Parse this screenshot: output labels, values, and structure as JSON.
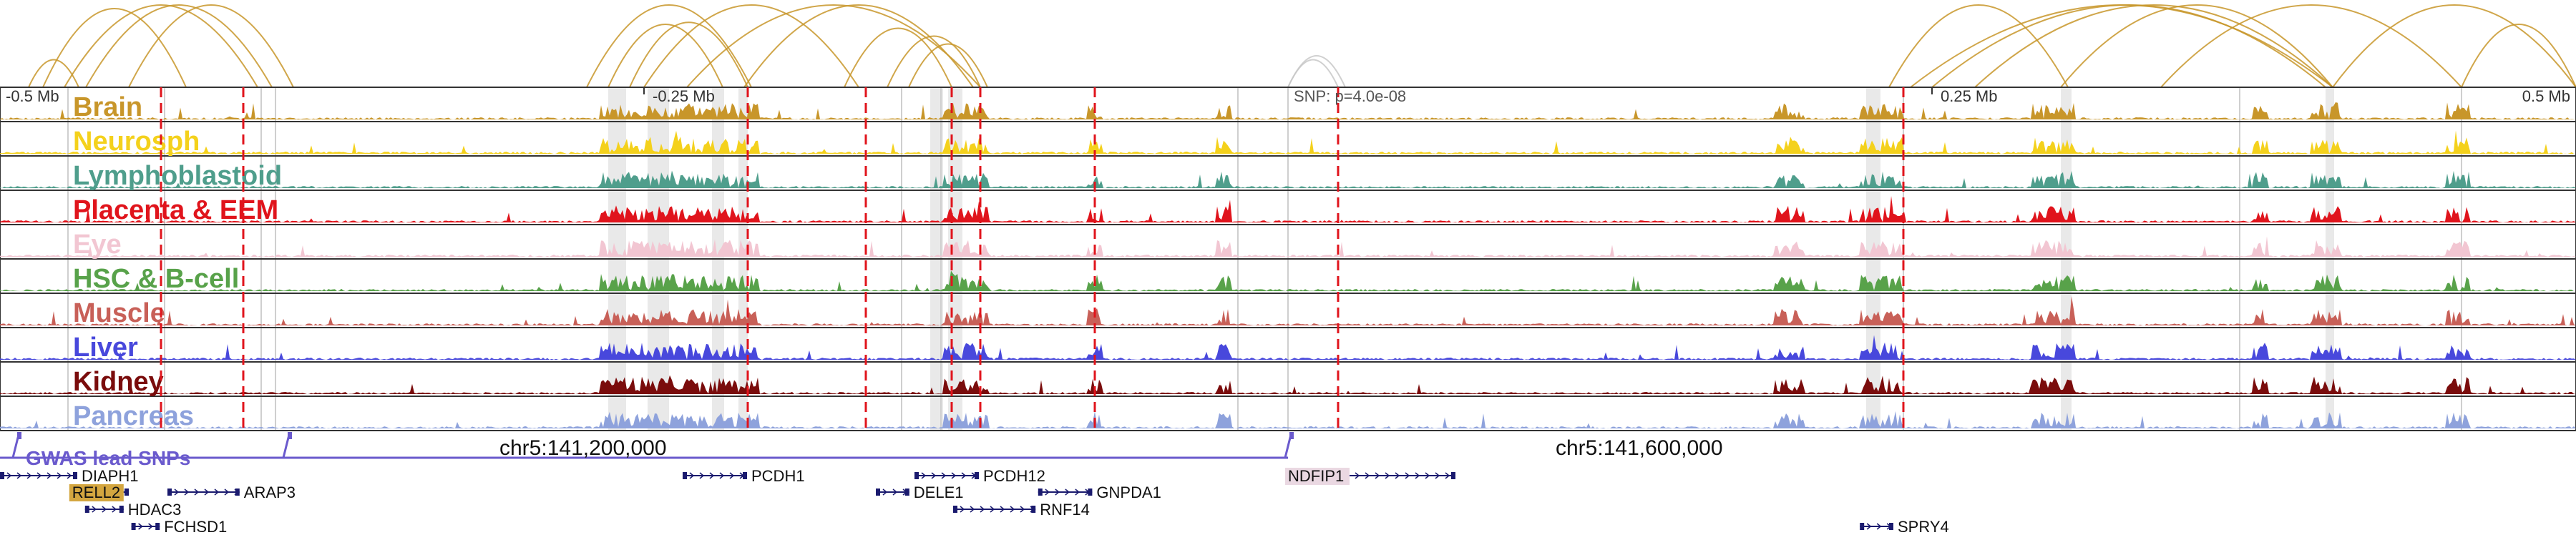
{
  "axis": {
    "ticks": [
      {
        "label": "-0.5 Mb",
        "pos": 0.0
      },
      {
        "label": "-0.25 Mb",
        "pos": 0.25
      },
      {
        "label": "0.25 Mb",
        "pos": 0.75
      },
      {
        "label": "0.5 Mb",
        "pos": 1.0
      }
    ],
    "snp_label": "SNP: p=4.0e-08",
    "snp_pos": 0.5
  },
  "tracks": [
    {
      "name": "Brain",
      "color": "#c8962a"
    },
    {
      "name": "Neurosph",
      "color": "#f4d11c"
    },
    {
      "name": "Lymphoblastoid",
      "color": "#4f9e8c"
    },
    {
      "name": "Placenta & EEM",
      "color": "#e0141c"
    },
    {
      "name": "Eye",
      "color": "#f2c6d2"
    },
    {
      "name": "HSC & B-cell",
      "color": "#58a24a"
    },
    {
      "name": "Muscle",
      "color": "#c86058"
    },
    {
      "name": "Liver",
      "color": "#4848dc"
    },
    {
      "name": "Kidney",
      "color": "#7a0c0c"
    },
    {
      "name": "Pancreas",
      "color": "#8ea2dc"
    }
  ],
  "gwas": {
    "label": "GWAS lead SNPs",
    "color": "#6a5acd"
  },
  "chromosome_labels": [
    {
      "text": "chr5:141,200,000",
      "pos": 0.23
    },
    {
      "text": "chr5:141,600,000",
      "pos": 0.64
    }
  ],
  "genes": [
    {
      "name": "DIAPH1",
      "start": 0.0,
      "end": 0.03,
      "row": 0,
      "highlight": false
    },
    {
      "name": "RELL2",
      "start": 0.028,
      "end": 0.05,
      "row": 1,
      "highlight": true,
      "highlight_color": "#d4a640"
    },
    {
      "name": "ARAP3",
      "start": 0.065,
      "end": 0.093,
      "row": 1,
      "highlight": false
    },
    {
      "name": "HDAC3",
      "start": 0.033,
      "end": 0.048,
      "row": 2,
      "highlight": false
    },
    {
      "name": "FCHSD1",
      "start": 0.051,
      "end": 0.062,
      "row": 3,
      "highlight": false
    },
    {
      "name": "PCDH1",
      "start": 0.265,
      "end": 0.29,
      "row": 0,
      "highlight": false
    },
    {
      "name": "DELE1",
      "start": 0.34,
      "end": 0.353,
      "row": 1,
      "highlight": false
    },
    {
      "name": "PCDH12",
      "start": 0.355,
      "end": 0.38,
      "row": 0,
      "highlight": false
    },
    {
      "name": "RNF14",
      "start": 0.37,
      "end": 0.402,
      "row": 2,
      "highlight": false
    },
    {
      "name": "GNPDA1",
      "start": 0.403,
      "end": 0.424,
      "row": 1,
      "highlight": false
    },
    {
      "name": "NDFIP1",
      "start": 0.5,
      "end": 0.565,
      "row": 0,
      "highlight": true,
      "highlight_color": "#ead8e2"
    },
    {
      "name": "SPRY4",
      "start": 0.722,
      "end": 0.735,
      "row": 3,
      "highlight": false
    }
  ]
}
